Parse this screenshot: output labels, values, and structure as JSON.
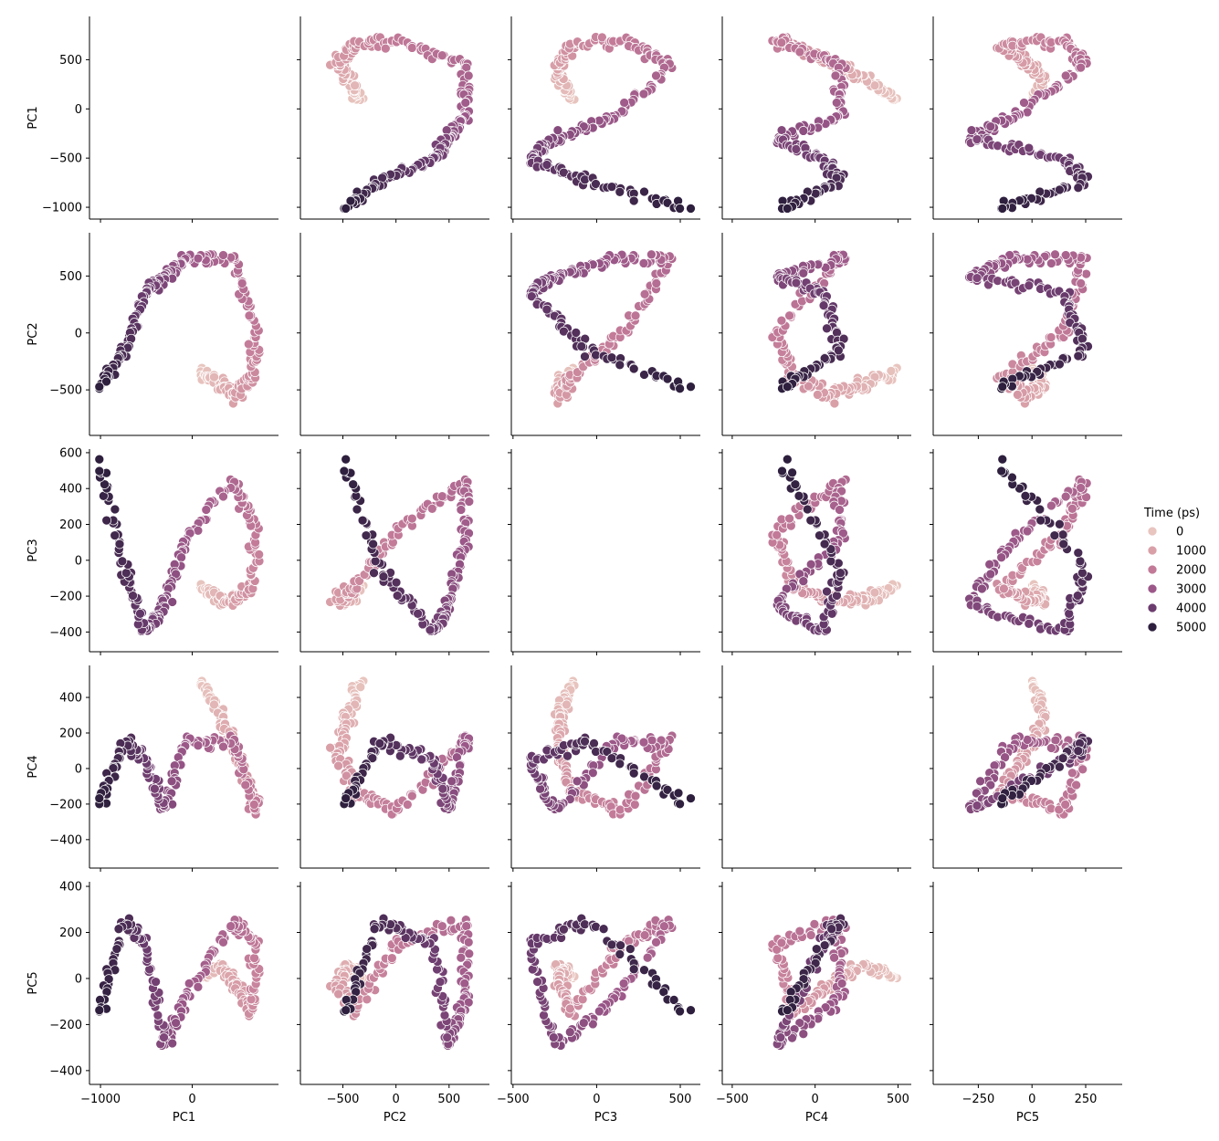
{
  "chart_data": {
    "type": "scatter",
    "variables": [
      "PC1",
      "PC2",
      "PC3",
      "PC4",
      "PC5"
    ],
    "axes": {
      "PC1": {
        "lim": [
          -1120,
          940
        ],
        "ticks": [
          -1000,
          -500,
          0,
          500
        ],
        "tick_labels": [
          "−1000",
          "−500",
          "0",
          "500"
        ]
      },
      "PC2": {
        "lim": [
          -900,
          880
        ],
        "ticks": [
          -500,
          0,
          500
        ],
        "tick_labels": [
          "−500",
          "0",
          "500"
        ]
      },
      "PC3": {
        "lim": [
          -510,
          620
        ],
        "ticks": [
          -400,
          -200,
          0,
          200,
          400,
          600
        ],
        "tick_labels": [
          "−400",
          "−200",
          "0",
          "200",
          "400",
          "600"
        ]
      },
      "PC4": {
        "lim": [
          -560,
          580
        ],
        "ticks": [
          -400,
          -200,
          0,
          200,
          400
        ],
        "tick_labels": [
          "−400",
          "−200",
          "0",
          "200",
          "400"
        ]
      },
      "PC5": {
        "lim": [
          -460,
          420
        ],
        "ticks": [
          -400,
          -200,
          0,
          200,
          400
        ],
        "tick_labels": [
          "−400",
          "−200",
          "0",
          "200",
          "400"
        ]
      }
    },
    "x_ticks": {
      "PC1": {
        "values": [
          -1000,
          0
        ],
        "labels": [
          "−1000",
          "0"
        ]
      },
      "PC2": {
        "values": [
          -500,
          0,
          500
        ],
        "labels": [
          "−500",
          "0",
          "500"
        ]
      },
      "PC3": {
        "values": [
          -500,
          0,
          500
        ],
        "labels": [
          "−500",
          "0",
          "500"
        ]
      },
      "PC4": {
        "values": [
          -500,
          0,
          500
        ],
        "labels": [
          "−500",
          "0",
          "500"
        ]
      },
      "PC5": {
        "values": [
          -250,
          0,
          250
        ],
        "labels": [
          "−250",
          "0",
          "250"
        ]
      }
    },
    "hue": {
      "title": "Time (ps)",
      "entries": [
        {
          "label": "0",
          "color": "#e8c5bf"
        },
        {
          "label": "1000",
          "color": "#d9a0a8"
        },
        {
          "label": "2000",
          "color": "#c27a98"
        },
        {
          "label": "3000",
          "color": "#9c5889"
        },
        {
          "label": "4000",
          "color": "#6b3c6e"
        },
        {
          "label": "5000",
          "color": "#2d1f3d"
        }
      ]
    },
    "trajectory_keypoints": [
      {
        "t": 0,
        "PC1": 100,
        "PC2": -350,
        "PC3": -150,
        "PC4": 480,
        "PC5": 0
      },
      {
        "t": 500,
        "PC1": 300,
        "PC2": -450,
        "PC3": -220,
        "PC4": 300,
        "PC5": 60
      },
      {
        "t": 1000,
        "PC1": 450,
        "PC2": -550,
        "PC3": -220,
        "PC4": 100,
        "PC5": -20
      },
      {
        "t": 1500,
        "PC1": 650,
        "PC2": -400,
        "PC3": -150,
        "PC4": -120,
        "PC5": -150
      },
      {
        "t": 2000,
        "PC1": 700,
        "PC2": 0,
        "PC3": 150,
        "PC4": -250,
        "PC5": 150
      },
      {
        "t": 2500,
        "PC1": 450,
        "PC2": 650,
        "PC3": 450,
        "PC4": 150,
        "PC5": 250
      },
      {
        "t": 3000,
        "PC1": -100,
        "PC2": 650,
        "PC3": 100,
        "PC4": 150,
        "PC5": -100
      },
      {
        "t": 3500,
        "PC1": -300,
        "PC2": 500,
        "PC3": -250,
        "PC4": -250,
        "PC5": -300
      },
      {
        "t": 4000,
        "PC1": -500,
        "PC2": 350,
        "PC3": -400,
        "PC4": 50,
        "PC5": 150
      },
      {
        "t": 4500,
        "PC1": -750,
        "PC2": -150,
        "PC3": -50,
        "PC4": 150,
        "PC5": 250
      },
      {
        "t": 5000,
        "PC1": -1000,
        "PC2": -470,
        "PC3": 550,
        "PC4": -200,
        "PC5": -150
      }
    ],
    "n_points": 260,
    "diagonal": "empty",
    "legend_placement": "right",
    "grid": false
  }
}
